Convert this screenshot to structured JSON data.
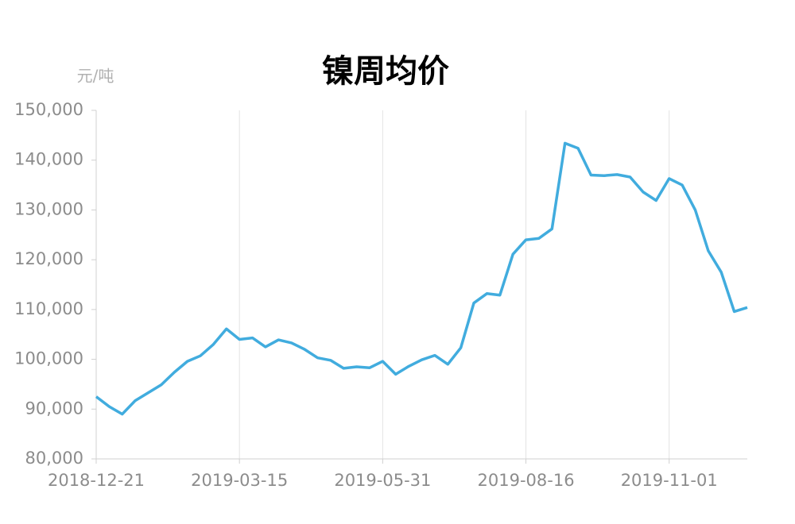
{
  "chart_data": {
    "type": "line",
    "title": "镍周均价",
    "y_label": "元/吨",
    "categories": [
      "2018-12-21",
      null,
      null,
      null,
      null,
      null,
      null,
      null,
      null,
      null,
      null,
      "2019-03-15",
      null,
      null,
      null,
      null,
      null,
      null,
      null,
      null,
      null,
      null,
      "2019-05-31",
      null,
      null,
      null,
      null,
      null,
      null,
      null,
      null,
      null,
      null,
      "2019-08-16",
      null,
      null,
      null,
      null,
      null,
      null,
      null,
      null,
      null,
      null,
      "2019-11-01",
      null,
      null,
      null,
      null,
      null,
      null
    ],
    "series": [
      {
        "name": "镍周均价",
        "color": "#41acde",
        "values": [
          92500,
          90500,
          89000,
          91700,
          93300,
          94900,
          97400,
          99600,
          100700,
          103000,
          106100,
          104000,
          104300,
          102500,
          103900,
          103300,
          102000,
          100300,
          99800,
          98200,
          98500,
          98300,
          99600,
          97000,
          98600,
          99900,
          100800,
          99000,
          102300,
          111300,
          113200,
          112900,
          121100,
          124000,
          124300,
          126200,
          143400,
          142400,
          137000,
          136900,
          137100,
          136600,
          133600,
          131900,
          136300,
          135000,
          130000,
          121800,
          117500,
          109600,
          110400
        ]
      }
    ],
    "ylim": [
      80000,
      150000
    ],
    "yticks": [
      {
        "value": 80000,
        "label": "80,000"
      },
      {
        "value": 90000,
        "label": "90,000"
      },
      {
        "value": 100000,
        "label": "100,000"
      },
      {
        "value": 110000,
        "label": "110,000"
      },
      {
        "value": 120000,
        "label": "120,000"
      },
      {
        "value": 130000,
        "label": "130,000"
      },
      {
        "value": 140000,
        "label": "140,000"
      },
      {
        "value": 150000,
        "label": "150,000"
      }
    ],
    "grid": true
  }
}
